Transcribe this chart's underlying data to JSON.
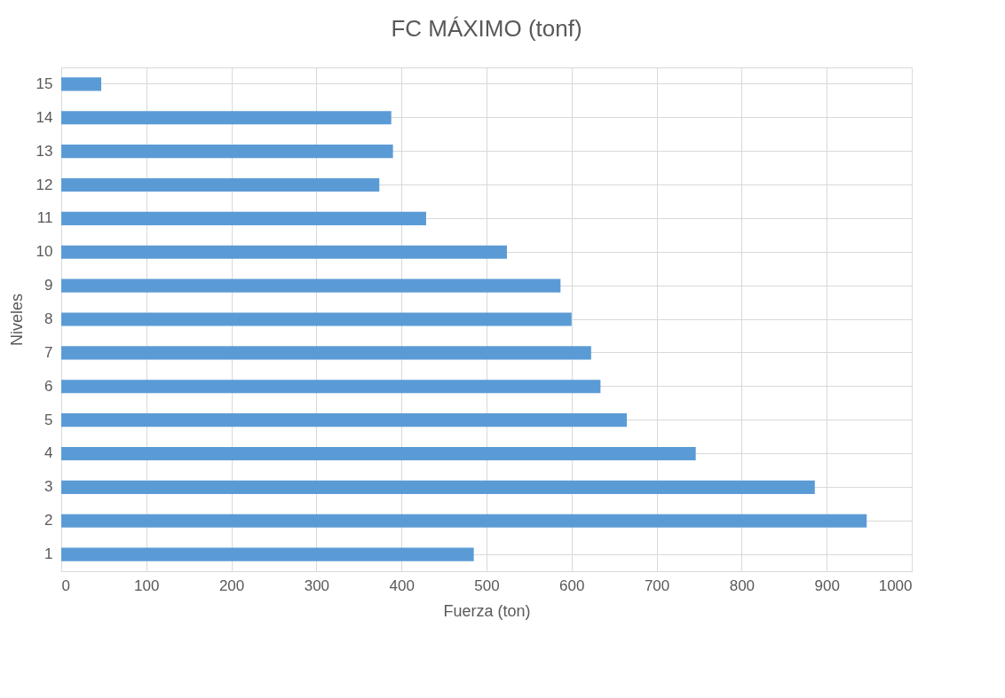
{
  "chart_data": {
    "type": "bar",
    "orientation": "horizontal",
    "title": "FC MÁXIMO (tonf)",
    "xlabel": "Fuerza (ton)",
    "ylabel": "Niveles",
    "categories": [
      "15",
      "14",
      "13",
      "12",
      "11",
      "10",
      "9",
      "8",
      "7",
      "6",
      "5",
      "4",
      "3",
      "2",
      "1"
    ],
    "values": [
      47,
      388,
      390,
      374,
      429,
      524,
      587,
      600,
      623,
      634,
      665,
      746,
      886,
      947,
      485
    ],
    "color": "#5b9bd5",
    "xlim": [
      0,
      1000
    ],
    "xticks": [
      0,
      100,
      200,
      300,
      400,
      500,
      600,
      700,
      800,
      900,
      1000
    ],
    "grid": true
  }
}
